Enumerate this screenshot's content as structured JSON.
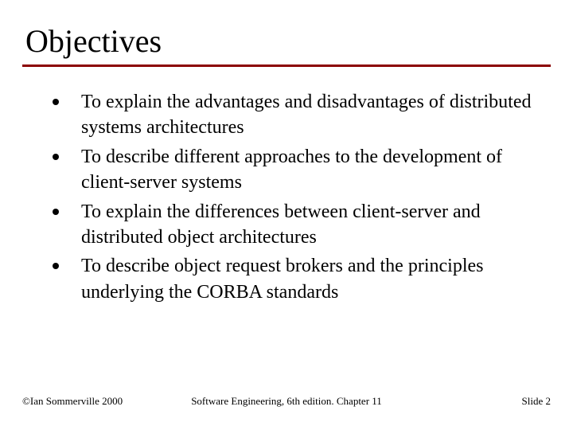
{
  "title": "Objectives",
  "underline_color": "#8b0000",
  "bullets": [
    "To explain the advantages and disadvantages of distributed systems architectures",
    "To describe different approaches to the development of client-server systems",
    "To explain the differences between client-server and distributed object architectures",
    "To describe object request brokers and the principles underlying the CORBA standards"
  ],
  "footer": {
    "left": "©Ian Sommerville 2000",
    "center": "Software Engineering, 6th edition. Chapter 11",
    "right": "Slide 2"
  },
  "styling": {
    "title_fontsize": 40,
    "body_fontsize": 24,
    "footer_fontsize": 13,
    "background_color": "#ffffff",
    "text_color": "#000000",
    "bullet_marker_color": "#000000",
    "bullet_marker_size": 8,
    "font_family": "Times New Roman"
  }
}
